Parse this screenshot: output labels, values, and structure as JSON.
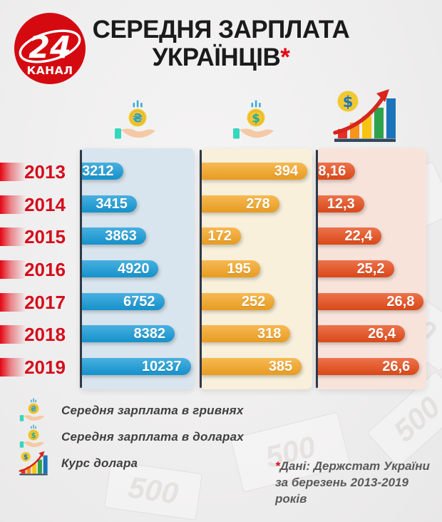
{
  "logo": {
    "number": "24",
    "word": "КАНАЛ",
    "name": "24 КАНАЛ"
  },
  "title": {
    "line1": "СЕРЕДНЯ ЗАРПЛАТА",
    "line2": "УКРАЇНЦІВ",
    "asterisk": "*"
  },
  "coin_symbols": {
    "hryvnia": "₴",
    "dollar": "$"
  },
  "chart_data": {
    "type": "bar",
    "orientation": "horizontal",
    "title": "СЕРЕДНЯ ЗАРПЛАТА УКРАЇНЦІВ",
    "categories": [
      "2013",
      "2014",
      "2015",
      "2016",
      "2017",
      "2018",
      "2019"
    ],
    "series": [
      {
        "name": "Середня зарплата в гривнях",
        "color": "#1B9CD8",
        "values": [
          "3212",
          "3415",
          "3863",
          "4920",
          "6752",
          "8382",
          "10237"
        ],
        "numeric": [
          3212,
          3415,
          3863,
          4920,
          6752,
          8382,
          10237
        ],
        "width_pct": [
          37,
          49,
          57,
          68,
          73,
          82,
          96
        ]
      },
      {
        "name": "Середня зарплата в доларах",
        "color": "#F5A728",
        "values": [
          "394",
          "278",
          "172",
          "195",
          "252",
          "318",
          "385"
        ],
        "numeric": [
          394,
          278,
          172,
          195,
          252,
          318,
          385
        ],
        "width_pct": [
          95,
          70,
          36,
          53,
          66,
          80,
          90
        ]
      },
      {
        "name": "Курс долара",
        "color": "#E7501E",
        "values": [
          "8,16",
          "12,3",
          "22,4",
          "25,2",
          "26,8",
          "26,4",
          "26,6"
        ],
        "numeric": [
          8.16,
          12.3,
          22.4,
          25.2,
          26.8,
          26.4,
          26.6
        ],
        "width_pct": [
          35,
          43,
          59,
          70,
          97,
          80,
          93
        ]
      }
    ],
    "value_labels_inside_bars": true,
    "legend_position": "bottom-left"
  },
  "legend": {
    "items": [
      {
        "icon": "hand-hryvnia-icon",
        "label": "Середня зарплата в гривнях"
      },
      {
        "icon": "hand-dollar-icon",
        "label": "Середня зарплата в доларах"
      },
      {
        "icon": "growth-chart-icon",
        "label": "Курс долара"
      }
    ]
  },
  "footnote": {
    "asterisk": "*",
    "text": "Дані: Держстат України за березень 2013-2019 років"
  },
  "decor": {
    "watermark_numeral": "500"
  },
  "colors": {
    "uah_bar": "#1B9CD8",
    "usd_bar": "#F5A728",
    "rate_bar": "#E7501E",
    "uah_panel": "#D9E5EE",
    "usd_panel": "#F8F0DB",
    "rate_panel": "#F8E3DB",
    "year_red": "#D50C1B",
    "marker_red": "#E30613",
    "logo_red": "#D40A10",
    "title_c": "#1B1B1B",
    "legend_c": "#3F3F3F",
    "footnote_c": "#5A5A5A",
    "spine_c": "#2E3945"
  }
}
